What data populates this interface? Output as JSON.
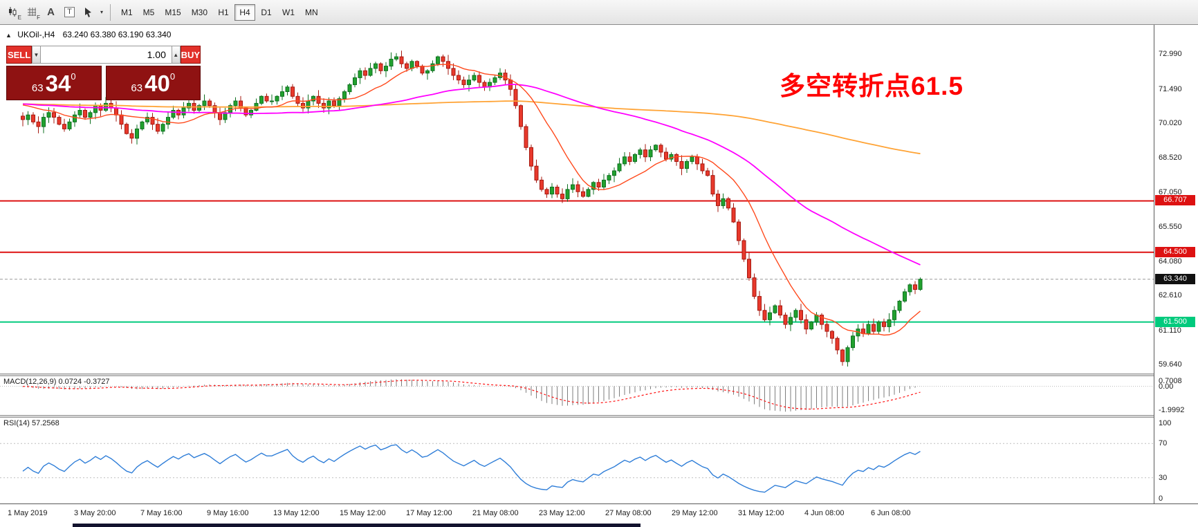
{
  "toolbar": {
    "icons": [
      {
        "name": "expert-chart-icon",
        "sub": "E"
      },
      {
        "name": "grid-icon",
        "sub": "F"
      },
      {
        "name": "text-annotation-icon",
        "glyph": "A"
      },
      {
        "name": "textbox-icon",
        "glyph": "T"
      },
      {
        "name": "crosshair-cursor-icon",
        "chevron": "▾"
      }
    ],
    "timeframes": [
      {
        "label": "M1"
      },
      {
        "label": "M5"
      },
      {
        "label": "M15"
      },
      {
        "label": "M30"
      },
      {
        "label": "H1"
      },
      {
        "label": "H4",
        "active": true
      },
      {
        "label": "D1"
      },
      {
        "label": "W1"
      },
      {
        "label": "MN"
      }
    ]
  },
  "chart": {
    "collapse_glyph": "▲",
    "symbol_label": "UKOil-,H4",
    "ohlc_text": "63.240 63.380 63.190 63.340",
    "annotation": "多空转折点61.5",
    "price_axis_labels": [
      "72.990",
      "71.490",
      "70.020",
      "68.520",
      "67.050",
      "65.550",
      "64.080",
      "62.610",
      "61.110",
      "59.640"
    ],
    "hlines": [
      {
        "price": 66.707,
        "label": "66.707",
        "color": "#dd1111",
        "width": 2,
        "flag_bg": "#dd1111"
      },
      {
        "price": 64.5,
        "label": "64.500",
        "color": "#dd1111",
        "width": 2,
        "flag_bg": "#dd1111"
      },
      {
        "price": 63.34,
        "label": "63.340",
        "color": "#999999",
        "width": 1,
        "dash": true,
        "flag_bg": "#111111"
      },
      {
        "price": 61.5,
        "label": "61.500",
        "color": "#00ca7d",
        "width": 2,
        "flag_bg": "#00ca7d"
      }
    ]
  },
  "trade_panel": {
    "sell_label": "SELL",
    "buy_label": "BUY",
    "volume": "1.00",
    "spin_down_glyph": "▼",
    "spin_up_glyph": "▲",
    "sell_price": {
      "prefix": "63",
      "big": "34",
      "sup": "0"
    },
    "buy_price": {
      "prefix": "63",
      "big": "40",
      "sup": "0"
    }
  },
  "macd": {
    "title": "MACD(12,26,9)",
    "values_text": "0.0724 -0.3727",
    "axis_labels": [
      "0.7008",
      "0.00",
      "-1.9992"
    ]
  },
  "rsi": {
    "title": "RSI(14)",
    "value_text": "57.2568",
    "axis_labels": [
      "100",
      "70",
      "30",
      "0"
    ]
  },
  "time_axis": [
    "1 May 2019",
    "3 May 20:00",
    "7 May 16:00",
    "9 May 16:00",
    "13 May 12:00",
    "15 May 12:00",
    "17 May 12:00",
    "21 May 08:00",
    "23 May 12:00",
    "27 May 08:00",
    "29 May 12:00",
    "31 May 12:00",
    "4 Jun 08:00",
    "6 Jun 08:00"
  ],
  "colors": {
    "candle_up": "#21a12e",
    "candle_up_border": "#0e7020",
    "candle_down": "#e8392c",
    "candle_down_border": "#a5180f",
    "ma_fast": "#ff4a1d",
    "ma_mid": "#ff00ff",
    "ma_slow": "#ffa335",
    "macd_hist": "#7d7d7d",
    "macd_signal": "#ff1111",
    "rsi_line": "#2f7ed8",
    "annotation_red": "#ff0000",
    "buy_sell_red": "#e2312a",
    "price_box_red": "#8f1212"
  },
  "chart_data": {
    "type": "candlestick",
    "symbol": "UKOil-",
    "timeframe": "H4",
    "current_ohlc": {
      "open": 63.24,
      "high": 63.38,
      "low": 63.19,
      "close": 63.34
    },
    "price_range": [
      59.29,
      74.27
    ],
    "price_ticks": [
      72.99,
      71.49,
      70.02,
      68.52,
      67.05,
      65.55,
      64.08,
      62.61,
      61.11,
      59.64
    ],
    "ma_periods": {
      "fast": 13,
      "mid": 55,
      "slow": 200
    },
    "macd_settings": {
      "fast": 12,
      "slow": 26,
      "signal": 9,
      "range": [
        -1.9992,
        0.7008
      ]
    },
    "rsi_settings": {
      "period": 14,
      "range": [
        0,
        100
      ],
      "levels": [
        70,
        30
      ]
    },
    "closes": [
      70.2,
      70.4,
      70.1,
      69.9,
      70.3,
      70.5,
      70.3,
      70.0,
      69.8,
      70.1,
      70.4,
      70.6,
      70.3,
      70.5,
      70.8,
      70.6,
      70.9,
      70.7,
      70.4,
      70.0,
      69.6,
      69.4,
      69.8,
      70.1,
      70.3,
      70.0,
      69.7,
      70.0,
      70.3,
      70.6,
      70.4,
      70.7,
      70.9,
      70.6,
      70.8,
      71.0,
      70.8,
      70.5,
      70.2,
      70.5,
      70.8,
      71.0,
      70.7,
      70.4,
      70.6,
      70.9,
      71.2,
      71.0,
      71.0,
      71.2,
      71.4,
      71.6,
      71.2,
      70.9,
      70.7,
      71.0,
      71.2,
      70.9,
      70.7,
      71.0,
      70.8,
      71.1,
      71.4,
      71.7,
      72.0,
      72.3,
      72.1,
      72.4,
      72.6,
      72.3,
      72.5,
      72.8,
      72.9,
      72.6,
      72.4,
      72.7,
      72.5,
      72.2,
      72.3,
      72.6,
      72.9,
      72.7,
      72.4,
      72.1,
      71.9,
      71.7,
      71.9,
      72.1,
      71.8,
      71.6,
      71.8,
      72.0,
      72.2,
      71.9,
      71.5,
      70.8,
      69.9,
      69.0,
      68.2,
      67.6,
      67.2,
      67.0,
      67.3,
      67.0,
      66.8,
      67.2,
      67.4,
      67.1,
      66.9,
      67.2,
      67.5,
      67.3,
      67.6,
      67.8,
      68.0,
      68.3,
      68.6,
      68.4,
      68.7,
      68.9,
      68.6,
      68.9,
      69.1,
      68.8,
      68.5,
      68.7,
      68.4,
      68.1,
      68.4,
      68.6,
      68.3,
      68.0,
      67.8,
      67.0,
      66.5,
      66.8,
      66.4,
      65.8,
      65.0,
      64.2,
      63.4,
      62.6,
      62.0,
      61.6,
      61.9,
      62.2,
      61.8,
      61.4,
      61.7,
      62.0,
      61.6,
      61.2,
      61.5,
      61.8,
      61.4,
      61.1,
      60.8,
      60.3,
      59.8,
      60.4,
      60.9,
      61.2,
      61.0,
      61.4,
      61.1,
      61.5,
      61.3,
      61.6,
      62.0,
      62.4,
      62.8,
      63.1,
      62.9,
      63.34
    ]
  }
}
